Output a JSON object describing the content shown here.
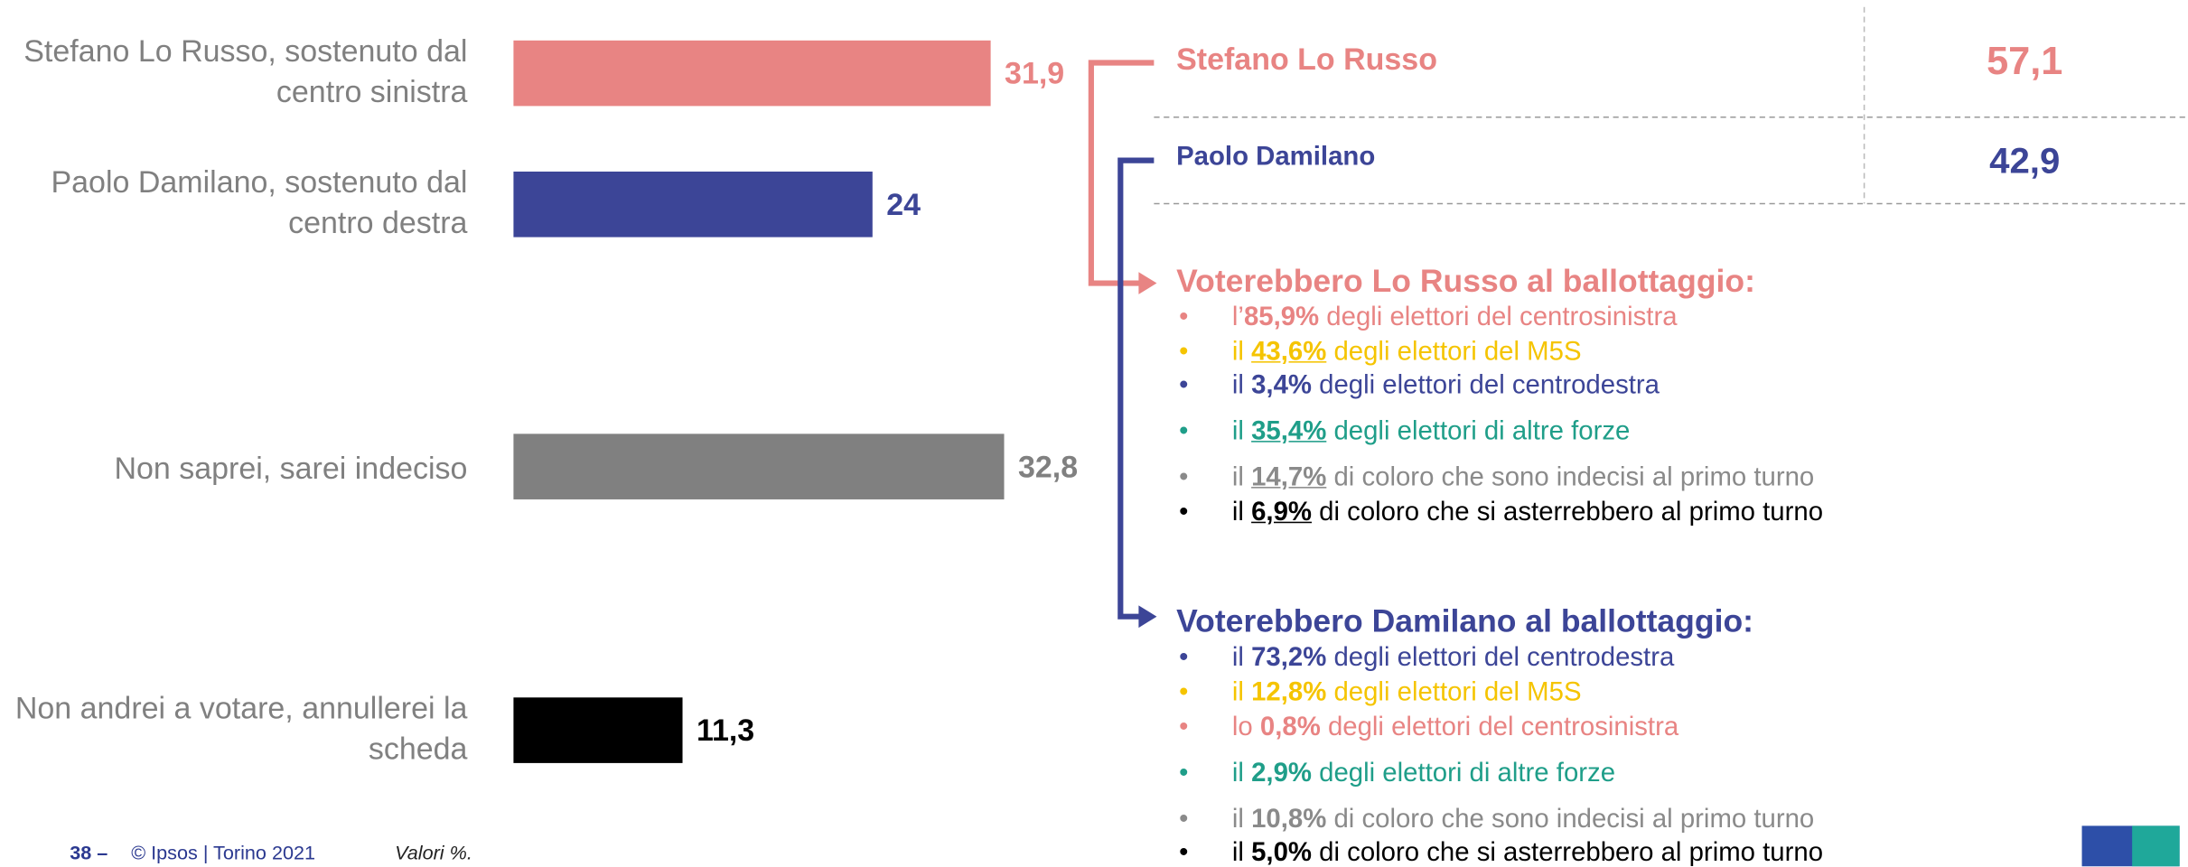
{
  "chart_data": {
    "type": "bar",
    "orientation": "horizontal",
    "categories": [
      "Stefano Lo Russo, sostenuto dal centro sinistra",
      "Paolo Damilano, sostenuto dal centro destra",
      "Non saprei, sarei indeciso",
      "Non andrei a votare, annullerei la scheda"
    ],
    "values": [
      31.9,
      24,
      32.8,
      11.3
    ],
    "value_labels": [
      "31,9",
      "24",
      "32,8",
      "11,3"
    ],
    "colors": [
      "#e88483",
      "#3c4597",
      "#808080",
      "#000000"
    ]
  },
  "results": [
    {
      "name": "Stefano Lo Russo",
      "value": "57,1",
      "color": "#e88483"
    },
    {
      "name": "Paolo Damilano",
      "value": "42,9",
      "color": "#3c4597"
    }
  ],
  "groups": [
    {
      "heading": "Voterebbero Lo Russo al ballottaggio:",
      "color": "#e88483",
      "items": [
        {
          "prefix": "l’",
          "pct": "85,9%",
          "rest": " degli elettori del centrosinistra",
          "color": "#e88483",
          "underline": false
        },
        {
          "prefix": "il ",
          "pct": "43,6%",
          "rest": " degli elettori del M5S",
          "color": "#f5c400",
          "underline": true
        },
        {
          "prefix": "il ",
          "pct": "3,4%",
          "rest": " degli elettori del centrodestra",
          "color": "#3c4597",
          "underline": false
        },
        {
          "prefix": "il ",
          "pct": "35,4%",
          "rest": " degli elettori di altre forze",
          "color": "#1f9e89",
          "underline": true
        },
        {
          "prefix": "il ",
          "pct": "14,7%",
          "rest": " di coloro che sono indecisi al primo turno",
          "color": "#8a8a8a",
          "underline": true
        },
        {
          "prefix": "il ",
          "pct": "6,9%",
          "rest": " di coloro che si asterrebbero al primo turno",
          "color": "#000000",
          "underline": true
        }
      ]
    },
    {
      "heading": "Voterebbero Damilano al ballottaggio:",
      "color": "#3c4597",
      "items": [
        {
          "prefix": "il ",
          "pct": "73,2%",
          "rest": " degli elettori del centrodestra",
          "color": "#3c4597",
          "underline": false
        },
        {
          "prefix": "il ",
          "pct": "12,8%",
          "rest": " degli elettori del M5S",
          "color": "#f5c400",
          "underline": false
        },
        {
          "prefix": "lo ",
          "pct": "0,8%",
          "rest": " degli elettori del centrosinistra",
          "color": "#e88483",
          "underline": false
        },
        {
          "prefix": "il ",
          "pct": "2,9%",
          "rest": " degli elettori di altre forze",
          "color": "#1f9e89",
          "underline": false
        },
        {
          "prefix": "il ",
          "pct": "10,8%",
          "rest": " di coloro che sono indecisi al primo turno",
          "color": "#8a8a8a",
          "underline": false
        },
        {
          "prefix": "il ",
          "pct": "5,0%",
          "rest": " di coloro che si asterrebbero al primo turno",
          "color": "#000000",
          "underline": false
        }
      ]
    }
  ],
  "footer": {
    "page": "38 –",
    "copyright": "© Ipsos | Torino 2021",
    "note": "Valori %."
  }
}
